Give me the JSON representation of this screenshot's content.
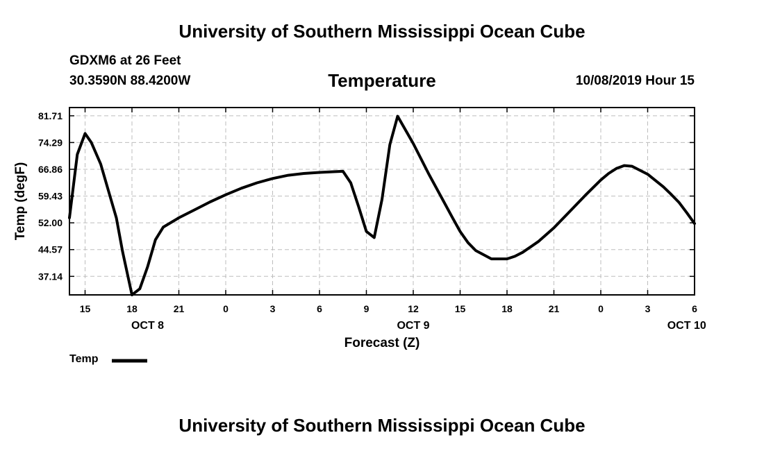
{
  "page": {
    "header_title": "University of Southern Mississippi Ocean Cube",
    "footer_title": "University of Southern Mississippi Ocean Cube",
    "station": "GDXM6 at 26 Feet",
    "coords": "30.3590N 88.4200W",
    "datetime": "10/08/2019 Hour 15"
  },
  "chart_data": {
    "type": "line",
    "title": "Temperature",
    "xlabel": "Forecast (Z)",
    "ylabel": "Temp (degF)",
    "x_unit": "hours since 10/08/2019 00Z",
    "xlim": [
      14,
      54
    ],
    "ylim": [
      32,
      84
    ],
    "grid": true,
    "y_ticks": [
      {
        "value": 37.14,
        "label": "37.14"
      },
      {
        "value": 44.57,
        "label": "44.57"
      },
      {
        "value": 52.0,
        "label": "52.00"
      },
      {
        "value": 59.43,
        "label": "59.43"
      },
      {
        "value": 66.86,
        "label": "66.86"
      },
      {
        "value": 74.29,
        "label": "74.29"
      },
      {
        "value": 81.71,
        "label": "81.71"
      }
    ],
    "x_ticks": [
      {
        "value": 15,
        "label": "15"
      },
      {
        "value": 18,
        "label": "18"
      },
      {
        "value": 21,
        "label": "21"
      },
      {
        "value": 24,
        "label": "0"
      },
      {
        "value": 27,
        "label": "3"
      },
      {
        "value": 30,
        "label": "6"
      },
      {
        "value": 33,
        "label": "9"
      },
      {
        "value": 36,
        "label": "12"
      },
      {
        "value": 39,
        "label": "15"
      },
      {
        "value": 42,
        "label": "18"
      },
      {
        "value": 45,
        "label": "21"
      },
      {
        "value": 48,
        "label": "0"
      },
      {
        "value": 51,
        "label": "3"
      },
      {
        "value": 54,
        "label": "6"
      }
    ],
    "day_labels": [
      {
        "value": 19,
        "label": "OCT 8"
      },
      {
        "value": 36,
        "label": "OCT 9"
      },
      {
        "value": 53.5,
        "label": "OCT 10"
      }
    ],
    "legend": {
      "position": "bottom-left",
      "entries": [
        "Temp"
      ]
    },
    "series": [
      {
        "name": "Temp",
        "color": "#000000",
        "x": [
          14.0,
          14.5,
          15.0,
          15.4,
          16.0,
          16.5,
          17.0,
          17.4,
          17.6,
          18.0,
          18.5,
          19.0,
          19.5,
          20.0,
          21.0,
          22.0,
          23.0,
          24.0,
          25.0,
          26.0,
          27.0,
          28.0,
          29.0,
          30.0,
          31.0,
          31.5,
          32.0,
          32.5,
          33.0,
          33.5,
          34.0,
          34.5,
          35.0,
          36.0,
          37.0,
          38.0,
          38.5,
          39.0,
          39.5,
          40.0,
          41.0,
          42.0,
          42.5,
          43.0,
          44.0,
          45.0,
          46.0,
          47.0,
          48.0,
          48.5,
          49.0,
          49.5,
          50.0,
          51.0,
          52.0,
          52.5,
          53.0,
          53.5,
          54.0
        ],
        "y": [
          53.4,
          71.0,
          76.8,
          74.3,
          68.3,
          60.8,
          53.4,
          44.0,
          40.0,
          32.0,
          33.7,
          39.8,
          47.3,
          50.8,
          53.4,
          55.6,
          57.8,
          59.8,
          61.6,
          63.1,
          64.3,
          65.2,
          65.7,
          66.0,
          66.2,
          66.3,
          63.1,
          56.5,
          49.6,
          47.9,
          58.5,
          73.7,
          81.6,
          74.0,
          65.5,
          57.5,
          53.5,
          49.6,
          46.5,
          44.3,
          42.0,
          42.0,
          42.7,
          43.8,
          46.8,
          50.6,
          55.1,
          59.6,
          63.9,
          65.7,
          67.1,
          67.9,
          67.7,
          65.5,
          62.0,
          59.9,
          57.7,
          54.8,
          51.8
        ]
      }
    ]
  }
}
